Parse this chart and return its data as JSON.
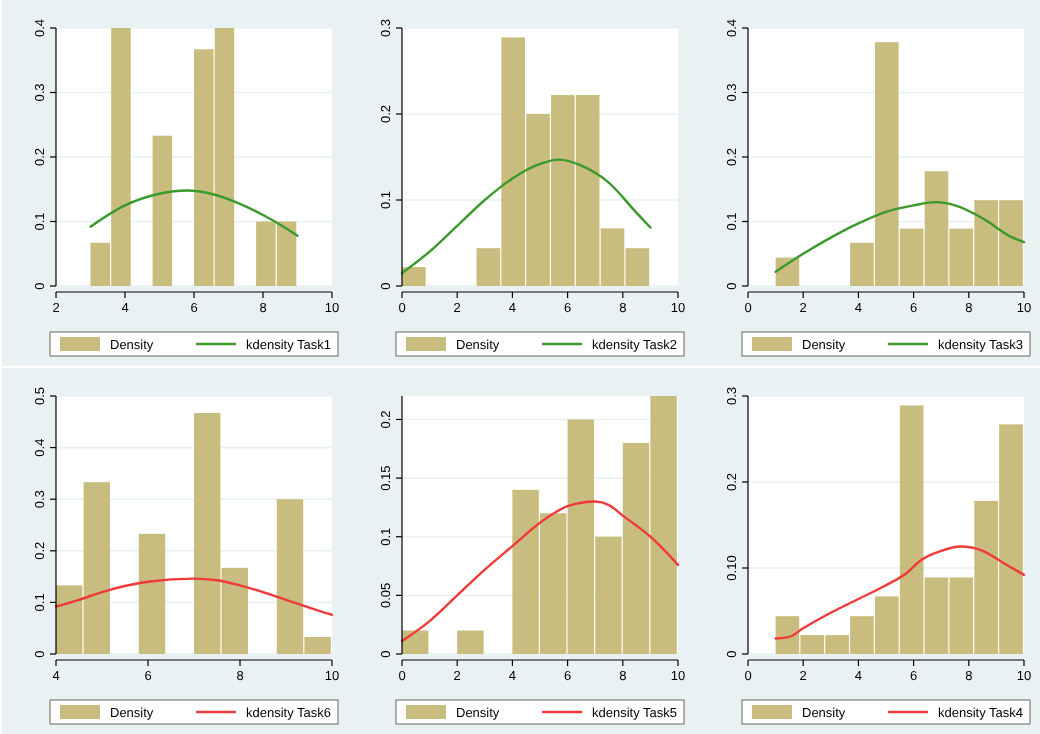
{
  "chart_data": [
    {
      "type": "histogram",
      "xlim": [
        2,
        10
      ],
      "xticks": [
        2,
        4,
        6,
        8,
        10
      ],
      "ylim": [
        0,
        0.4
      ],
      "yticks": [
        0,
        0.1,
        0.2,
        0.3,
        0.4
      ],
      "grid": "y",
      "legend": "bottom",
      "series": [
        {
          "name": "Density",
          "color": "#c8bc7e",
          "bins": [
            3,
            3.6,
            4.2,
            4.8,
            5.4,
            6,
            6.6,
            7.2,
            7.8,
            8.4,
            9
          ],
          "values": [
            0.067,
            0.4,
            0,
            0.233,
            0,
            0.367,
            0.4,
            0,
            0.1,
            0.1
          ]
        },
        {
          "type": "line",
          "name": "kdensity Task1",
          "color": "#3a9a2a",
          "x": [
            3,
            4,
            5,
            5.8,
            6.5,
            7.3,
            8,
            8.5,
            9
          ],
          "values": [
            0.092,
            0.125,
            0.143,
            0.148,
            0.143,
            0.128,
            0.11,
            0.095,
            0.078
          ]
        }
      ]
    },
    {
      "type": "histogram",
      "xlim": [
        0,
        10
      ],
      "xticks": [
        0,
        2,
        4,
        6,
        8,
        10
      ],
      "ylim": [
        0,
        0.3
      ],
      "yticks": [
        0,
        0.1,
        0.2,
        0.3
      ],
      "grid": "y",
      "legend": "bottom",
      "series": [
        {
          "name": "Density",
          "color": "#c8bc7e",
          "bins": [
            0,
            0.9,
            1.8,
            2.7,
            3.6,
            4.5,
            5.4,
            6.3,
            7.2,
            8.1,
            9
          ],
          "values": [
            0.022,
            0,
            0,
            0.044,
            0.289,
            0.2,
            0.222,
            0.222,
            0.067,
            0.044
          ]
        },
        {
          "type": "line",
          "name": "kdensity Task2",
          "color": "#3a9a2a",
          "x": [
            0,
            1,
            2,
            3,
            4,
            5,
            5.7,
            6.5,
            7.5,
            8.5,
            9
          ],
          "values": [
            0.015,
            0.04,
            0.07,
            0.1,
            0.125,
            0.142,
            0.147,
            0.14,
            0.12,
            0.085,
            0.068
          ]
        }
      ]
    },
    {
      "type": "histogram",
      "xlim": [
        0,
        10
      ],
      "xticks": [
        0,
        2,
        4,
        6,
        8,
        10
      ],
      "ylim": [
        0,
        0.4
      ],
      "yticks": [
        0,
        0.1,
        0.2,
        0.3,
        0.4
      ],
      "grid": "y",
      "legend": "bottom",
      "series": [
        {
          "name": "Density",
          "color": "#c8bc7e",
          "bins": [
            1,
            1.9,
            2.8,
            3.7,
            4.6,
            5.5,
            6.4,
            7.3,
            8.2,
            9.1,
            10
          ],
          "values": [
            0.044,
            0,
            0,
            0.067,
            0.378,
            0.089,
            0.178,
            0.089,
            0.133,
            0.133
          ]
        },
        {
          "type": "line",
          "name": "kdensity Task3",
          "color": "#3a9a2a",
          "x": [
            1,
            2,
            3,
            4,
            5,
            6,
            6.8,
            7.5,
            8.5,
            9.5,
            10
          ],
          "values": [
            0.022,
            0.05,
            0.075,
            0.097,
            0.115,
            0.125,
            0.13,
            0.125,
            0.105,
            0.077,
            0.068
          ]
        }
      ]
    },
    {
      "type": "histogram",
      "xlim": [
        4,
        10
      ],
      "xticks": [
        4,
        6,
        8,
        10
      ],
      "ylim": [
        0,
        0.5
      ],
      "yticks": [
        0,
        0.1,
        0.2,
        0.3,
        0.4,
        0.5
      ],
      "grid": "y",
      "legend": "bottom",
      "series": [
        {
          "name": "Density",
          "color": "#c8bc7e",
          "bins": [
            4,
            4.6,
            5.2,
            5.8,
            6.4,
            7,
            7.6,
            8.2,
            8.8,
            9.4,
            10
          ],
          "values": [
            0.133,
            0.333,
            0,
            0.233,
            0,
            0.467,
            0.167,
            0,
            0.3,
            0.033
          ]
        },
        {
          "type": "line",
          "name": "kdensity Task6",
          "color": "#f03a3a",
          "x": [
            4,
            4.5,
            5,
            6,
            7,
            7.5,
            8,
            9,
            9.5,
            10
          ],
          "values": [
            0.092,
            0.105,
            0.12,
            0.14,
            0.146,
            0.143,
            0.133,
            0.105,
            0.09,
            0.076
          ]
        }
      ]
    },
    {
      "type": "histogram",
      "xlim": [
        0,
        10
      ],
      "xticks": [
        0,
        2,
        4,
        6,
        8,
        10
      ],
      "ylim": [
        0,
        0.22
      ],
      "yticks": [
        0,
        0.05,
        0.1,
        0.15,
        0.2
      ],
      "grid": "y",
      "legend": "bottom",
      "series": [
        {
          "name": "Density",
          "color": "#c8bc7e",
          "bins": [
            0,
            1,
            2,
            3,
            4,
            5,
            6,
            7,
            8,
            9,
            10
          ],
          "values": [
            0.02,
            0,
            0.02,
            0,
            0.14,
            0.12,
            0.2,
            0.1,
            0.18,
            0.22
          ]
        },
        {
          "type": "line",
          "name": "kdensity Task5",
          "color": "#f03a3a",
          "x": [
            0,
            1,
            2,
            3,
            4,
            5,
            6,
            7,
            7.5,
            8,
            9,
            10
          ],
          "values": [
            0.011,
            0.028,
            0.05,
            0.072,
            0.092,
            0.112,
            0.126,
            0.13,
            0.127,
            0.118,
            0.1,
            0.076
          ]
        }
      ]
    },
    {
      "type": "histogram",
      "xlim": [
        0,
        10
      ],
      "xticks": [
        0,
        2,
        4,
        6,
        8,
        10
      ],
      "ylim": [
        0,
        0.3
      ],
      "yticks": [
        0,
        {
          "value": 0.1,
          "label": "0.10"
        },
        0.2,
        0.3
      ],
      "grid": "y",
      "legend": "bottom",
      "series": [
        {
          "name": "Density",
          "color": "#c8bc7e",
          "bins": [
            1,
            1.9,
            2.8,
            3.7,
            4.6,
            5.5,
            6.4,
            7.3,
            8.2,
            9.1,
            10
          ],
          "values": [
            0.044,
            0.022,
            0.022,
            0.044,
            0.067,
            0.289,
            0.089,
            0.089,
            0.178,
            0.267
          ]
        },
        {
          "type": "line",
          "name": "kdensity Task4",
          "color": "#f03a3a",
          "x": [
            1,
            1.5,
            2,
            3,
            4,
            5,
            5.7,
            6.3,
            7,
            7.7,
            8.5,
            9.3,
            10
          ],
          "values": [
            0.018,
            0.02,
            0.03,
            0.048,
            0.064,
            0.08,
            0.093,
            0.11,
            0.12,
            0.125,
            0.12,
            0.105,
            0.092
          ]
        }
      ]
    }
  ]
}
